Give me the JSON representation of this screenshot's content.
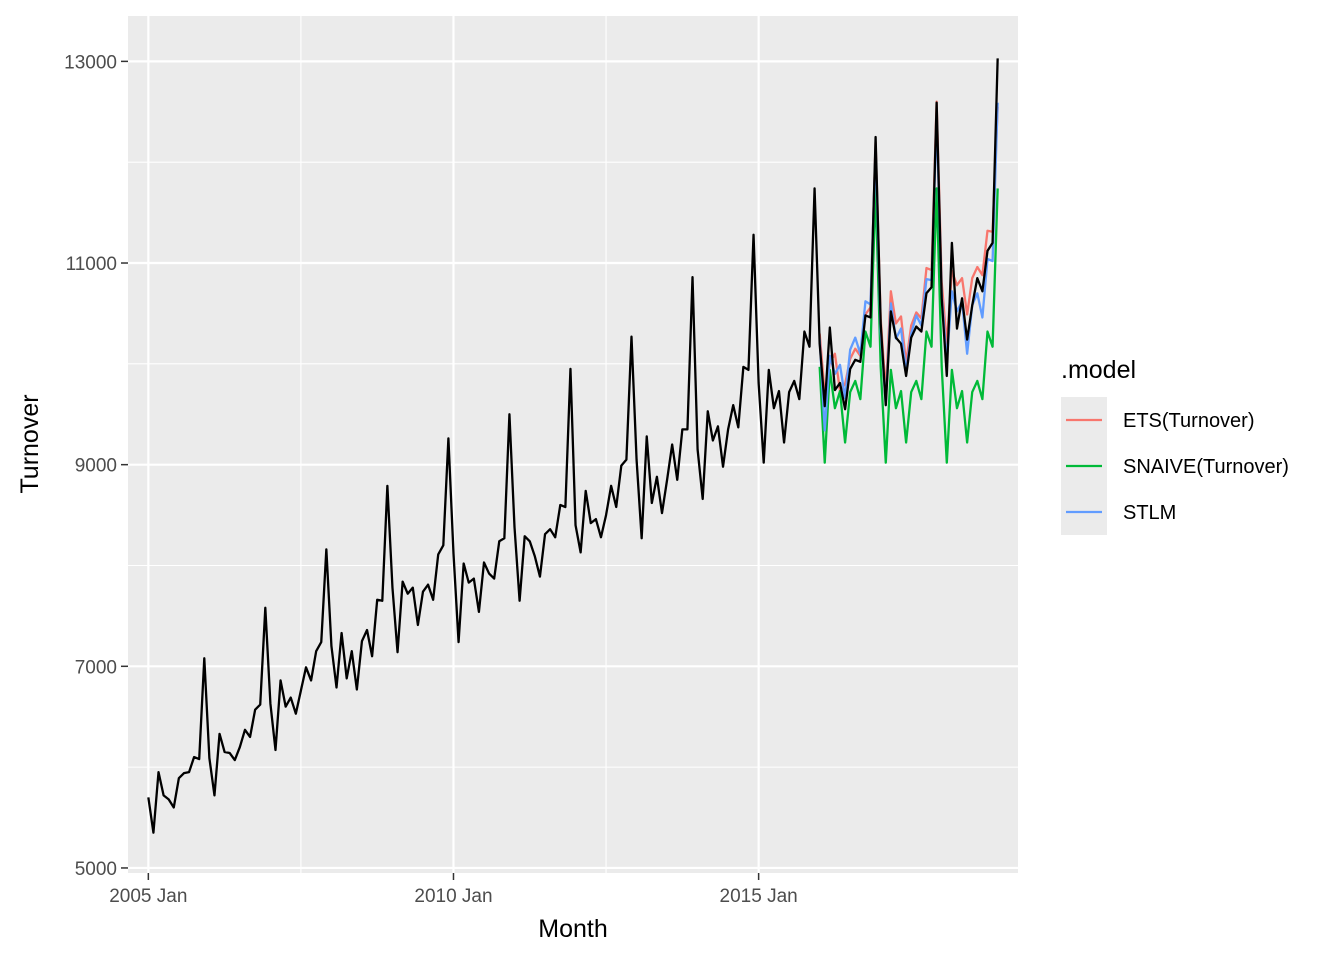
{
  "chart_data": {
    "type": "line",
    "xlabel": "Month",
    "ylabel": "Turnover",
    "x_tick_labels": [
      "2005 Jan",
      "2010 Jan",
      "2015 Jan"
    ],
    "y_tick_labels": [
      "5000",
      "7000",
      "9000",
      "11000",
      "13000"
    ],
    "y_ticks": [
      5000,
      7000,
      9000,
      11000,
      13000
    ],
    "ylim": [
      4950,
      13450
    ],
    "xlim": [
      "2004-09",
      "2019-04"
    ],
    "x_start": "2005-01",
    "grid": true,
    "legend": {
      "title": ".model",
      "position": "right",
      "entries": [
        {
          "label": "ETS(Turnover)",
          "color": "#F8766D"
        },
        {
          "label": "SNAIVE(Turnover)",
          "color": "#00BA38"
        },
        {
          "label": "STLM",
          "color": "#619CFF"
        }
      ]
    },
    "actual": {
      "color": "#000000",
      "start": "2005-01",
      "values": [
        5700,
        5350,
        5950,
        5720,
        5680,
        5600,
        5890,
        5940,
        5950,
        6100,
        6080,
        7080,
        6090,
        5720,
        6330,
        6150,
        6140,
        6070,
        6200,
        6370,
        6300,
        6570,
        6620,
        7580,
        6630,
        6170,
        6860,
        6600,
        6690,
        6530,
        6760,
        6990,
        6860,
        7150,
        7240,
        8160,
        7200,
        6790,
        7330,
        6880,
        7150,
        6770,
        7250,
        7360,
        7100,
        7660,
        7650,
        8790,
        7780,
        7140,
        7840,
        7720,
        7780,
        7410,
        7740,
        7810,
        7660,
        8110,
        8200,
        9260,
        8120,
        7240,
        8020,
        7830,
        7870,
        7540,
        8030,
        7920,
        7870,
        8240,
        8270,
        9500,
        8380,
        7650,
        8290,
        8240,
        8090,
        7890,
        8310,
        8360,
        8280,
        8600,
        8580,
        9950,
        8400,
        8130,
        8740,
        8420,
        8460,
        8280,
        8500,
        8790,
        8580,
        8990,
        9050,
        10270,
        9050,
        8270,
        9280,
        8620,
        8880,
        8520,
        8850,
        9200,
        8850,
        9350,
        9350,
        10860,
        9150,
        8660,
        9530,
        9240,
        9380,
        8980,
        9350,
        9590,
        9370,
        9970,
        9940,
        11280,
        9810,
        9020,
        9940,
        9560,
        9730,
        9220,
        9720,
        9830,
        9650,
        10320,
        10170,
        11740,
        10200,
        9580,
        10360,
        9740,
        9810,
        9550,
        9950,
        10040,
        10020,
        10480,
        10460,
        12250,
        10400,
        9590,
        10520,
        10260,
        10200,
        9880,
        10260,
        10370,
        10320,
        10700,
        10760,
        12590,
        10650,
        9880,
        11200,
        10350,
        10650,
        10240,
        10580,
        10850,
        10720,
        11120,
        11200,
        13030
      ]
    },
    "series": [
      {
        "name": "ETS(Turnover)",
        "color": "#F8766D",
        "start": "2016-01",
        "values": [
          10300,
          9700,
          10010,
          10100,
          9730,
          9800,
          10050,
          10150,
          10080,
          10490,
          10560,
          12200,
          10450,
          9720,
          10720,
          10400,
          10470,
          10010,
          10380,
          10510,
          10450,
          10950,
          10930,
          12600,
          10810,
          10200,
          10920,
          10780,
          10850,
          10490,
          10850,
          10960,
          10880,
          11320,
          11310,
          12550
        ]
      },
      {
        "name": "SNAIVE(Turnover)",
        "color": "#00BA38",
        "start": "2016-01",
        "values": [
          9970,
          9020,
          9940,
          9560,
          9730,
          9220,
          9720,
          9830,
          9650,
          10320,
          10170,
          11740,
          9970,
          9020,
          9940,
          9560,
          9730,
          9220,
          9720,
          9830,
          9650,
          10320,
          10170,
          11740,
          9970,
          9020,
          9940,
          9560,
          9730,
          9220,
          9720,
          9830,
          9650,
          10320,
          10170,
          11740
        ]
      },
      {
        "name": "STLM",
        "color": "#619CFF",
        "start": "2016-01",
        "values": [
          10250,
          9340,
          10080,
          9900,
          9990,
          9660,
          10140,
          10260,
          10100,
          10620,
          10590,
          12150,
          10320,
          9600,
          10600,
          10250,
          10350,
          9920,
          10300,
          10480,
          10380,
          10840,
          10830,
          12450,
          10680,
          10020,
          10720,
          10520,
          10620,
          10100,
          10580,
          10700,
          10460,
          11040,
          11020,
          12590
        ]
      }
    ]
  }
}
